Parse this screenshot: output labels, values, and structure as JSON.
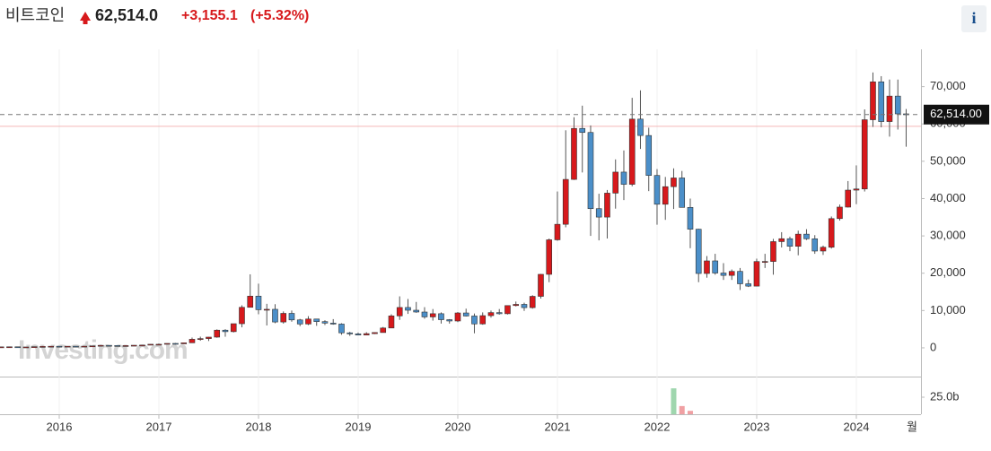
{
  "header": {
    "title": "비트코인",
    "price": "62,514.0",
    "change": "+3,155.1",
    "change_pct": "(+5.32%)",
    "info": "i"
  },
  "chart_data": {
    "type": "candlestick",
    "watermark": "Investing.com",
    "categories": [
      null,
      null,
      null,
      null,
      null,
      null,
      null,
      "2016",
      null,
      null,
      null,
      null,
      null,
      null,
      null,
      null,
      null,
      null,
      null,
      "2017",
      null,
      null,
      null,
      null,
      null,
      null,
      null,
      null,
      null,
      null,
      null,
      "2018",
      null,
      null,
      null,
      null,
      null,
      null,
      null,
      null,
      null,
      null,
      null,
      "2019",
      null,
      null,
      null,
      null,
      null,
      null,
      null,
      null,
      null,
      null,
      null,
      "2020",
      null,
      null,
      null,
      null,
      null,
      null,
      null,
      null,
      null,
      null,
      null,
      "2021",
      null,
      null,
      null,
      null,
      null,
      null,
      null,
      null,
      null,
      null,
      null,
      "2022",
      null,
      null,
      null,
      null,
      null,
      null,
      null,
      null,
      null,
      null,
      null,
      "2023",
      null,
      null,
      null,
      null,
      null,
      null,
      null,
      null,
      null,
      null,
      null,
      "2024",
      null,
      null,
      null,
      null,
      null,
      null
    ],
    "partial_label": "월",
    "open": [
      230,
      263,
      284,
      230,
      236,
      314,
      377,
      430,
      369,
      437,
      416,
      448,
      531,
      673,
      624,
      575,
      608,
      698,
      742,
      964,
      965,
      1190,
      1080,
      1350,
      2300,
      2480,
      2875,
      4740,
      4340,
      6470,
      10860,
      13860,
      10220,
      10330,
      6930,
      9240,
      7490,
      6390,
      7730,
      7030,
      6630,
      6370,
      4020,
      3740,
      3440,
      3810,
      4100,
      5320,
      8560,
      10820,
      10080,
      9600,
      8290,
      9150,
      7550,
      7200,
      9350,
      8530,
      6410,
      8630,
      9450,
      9140,
      11330,
      11650,
      10780,
      13800,
      19700,
      28950,
      33110,
      45140,
      58800,
      57720,
      37300,
      35040,
      41460,
      47100,
      43820,
      61300,
      56900,
      46200,
      38480,
      43190,
      45530,
      37640,
      31790,
      19930,
      23300,
      20050,
      19420,
      20490,
      17170,
      16540,
      23130,
      23150,
      28470,
      29250,
      27210,
      30470,
      29230,
      25940,
      26960,
      34640,
      37720,
      42270,
      42580,
      61130,
      71290,
      60640,
      67470,
      62700
    ],
    "high": [
      267,
      315,
      285,
      245,
      330,
      495,
      467,
      460,
      445,
      440,
      468,
      550,
      780,
      680,
      625,
      630,
      720,
      755,
      980,
      1150,
      1200,
      1300,
      1350,
      2760,
      3000,
      2920,
      4950,
      5000,
      6470,
      11400,
      19700,
      17200,
      11800,
      11700,
      9760,
      10000,
      7760,
      8500,
      7760,
      7400,
      7700,
      6600,
      4300,
      4100,
      4200,
      4100,
      5600,
      9000,
      13800,
      13100,
      12300,
      10900,
      10400,
      9500,
      7700,
      9600,
      10500,
      9200,
      9500,
      10000,
      10400,
      11400,
      12400,
      12100,
      14100,
      19800,
      29300,
      41900,
      58300,
      61800,
      64900,
      59600,
      41300,
      42300,
      50500,
      52900,
      67000,
      69000,
      59000,
      47900,
      45800,
      48100,
      47400,
      40000,
      31900,
      24600,
      25200,
      22700,
      21000,
      21400,
      18300,
      23900,
      25200,
      29200,
      31000,
      29800,
      31400,
      31800,
      30200,
      27400,
      35200,
      38400,
      44700,
      48900,
      63900,
      73800,
      72800,
      71900,
      71900,
      64000
    ],
    "low": [
      220,
      253,
      200,
      225,
      235,
      310,
      350,
      355,
      365,
      395,
      412,
      440,
      525,
      610,
      470,
      570,
      600,
      690,
      740,
      750,
      920,
      890,
      1060,
      1350,
      1900,
      1830,
      2700,
      2980,
      4130,
      5500,
      10800,
      9000,
      6000,
      6600,
      6500,
      7000,
      5800,
      6100,
      5900,
      6100,
      6200,
      3500,
      3200,
      3400,
      3400,
      3700,
      4100,
      5300,
      7500,
      9100,
      9400,
      7800,
      7300,
      6500,
      6500,
      6900,
      8400,
      3900,
      6200,
      8100,
      8900,
      8950,
      11100,
      9900,
      10500,
      13200,
      17600,
      28700,
      32300,
      45000,
      47000,
      30000,
      28800,
      29300,
      37300,
      39600,
      43300,
      53300,
      42000,
      33000,
      34300,
      37200,
      37600,
      26700,
      17600,
      18800,
      19600,
      18200,
      18200,
      15500,
      16300,
      16500,
      21400,
      19600,
      26900,
      25900,
      24800,
      28900,
      25200,
      24900,
      26600,
      34100,
      37600,
      38500,
      41900,
      59200,
      59100,
      56600,
      58500,
      53900
    ],
    "close": [
      263,
      284,
      230,
      236,
      314,
      377,
      430,
      369,
      437,
      416,
      448,
      531,
      673,
      624,
      575,
      608,
      698,
      742,
      964,
      965,
      1190,
      1080,
      1350,
      2300,
      2480,
      2875,
      4740,
      4340,
      6470,
      10860,
      13860,
      10220,
      10330,
      6930,
      9240,
      7490,
      6390,
      7730,
      7030,
      6630,
      6370,
      4020,
      3740,
      3440,
      3810,
      4100,
      5320,
      8560,
      10820,
      10080,
      9600,
      8290,
      9150,
      7550,
      7200,
      9350,
      8530,
      6410,
      8630,
      9450,
      9140,
      11330,
      11650,
      10780,
      13800,
      19700,
      28950,
      33110,
      45140,
      58800,
      57720,
      37300,
      35040,
      41460,
      47100,
      43820,
      61300,
      56900,
      46200,
      38480,
      43190,
      45530,
      37640,
      31790,
      19930,
      23300,
      20050,
      19420,
      20490,
      17170,
      16540,
      23130,
      23150,
      28470,
      29250,
      27210,
      30470,
      29230,
      25940,
      26960,
      34640,
      37720,
      42270,
      42580,
      61130,
      71290,
      60640,
      67470,
      62700,
      62514
    ],
    "up_color": "#d7191c",
    "down_color": "#4b8fc9",
    "ylim": [
      -7700,
      80000
    ],
    "yticks": [
      0,
      {
        "value": 10000,
        "label": "10,000"
      },
      {
        "value": 20000,
        "label": "20,000"
      },
      {
        "value": 30000,
        "label": "30,000"
      },
      {
        "value": 40000,
        "label": "40,000"
      },
      {
        "value": 50000,
        "label": "50,000"
      },
      {
        "value": 60000,
        "label": "60,000"
      },
      {
        "value": 70000,
        "label": "70,000"
      }
    ],
    "last_price": 62514,
    "last_price_label": "62,514.00",
    "previous_close": 59358.9,
    "volume": [
      null,
      null,
      null,
      null,
      null,
      null,
      null,
      null,
      null,
      null,
      null,
      null,
      null,
      null,
      null,
      null,
      null,
      null,
      null,
      null,
      null,
      null,
      null,
      null,
      null,
      null,
      null,
      null,
      null,
      null,
      null,
      null,
      null,
      null,
      null,
      null,
      null,
      null,
      null,
      null,
      null,
      null,
      null,
      null,
      null,
      null,
      null,
      null,
      null,
      null,
      null,
      null,
      null,
      null,
      null,
      null,
      null,
      null,
      null,
      null,
      null,
      null,
      null,
      null,
      null,
      null,
      null,
      null,
      null,
      null,
      null,
      null,
      null,
      null,
      null,
      null,
      null,
      null,
      null,
      null,
      null,
      38000000000,
      12000000000,
      5000000000,
      null,
      null,
      null,
      null,
      null,
      null,
      null,
      null,
      null,
      null,
      null,
      null,
      null,
      null,
      null,
      null,
      null,
      null,
      null,
      null,
      null,
      null,
      null,
      null,
      null,
      null
    ],
    "volume_up_color": "#9fd6ae",
    "volume_down_color": "#f0a0a3",
    "volume_ylim": [
      0,
      52600000000
    ],
    "volume_yticks": [
      {
        "value": 25000000000,
        "label": "25.0b"
      }
    ]
  }
}
